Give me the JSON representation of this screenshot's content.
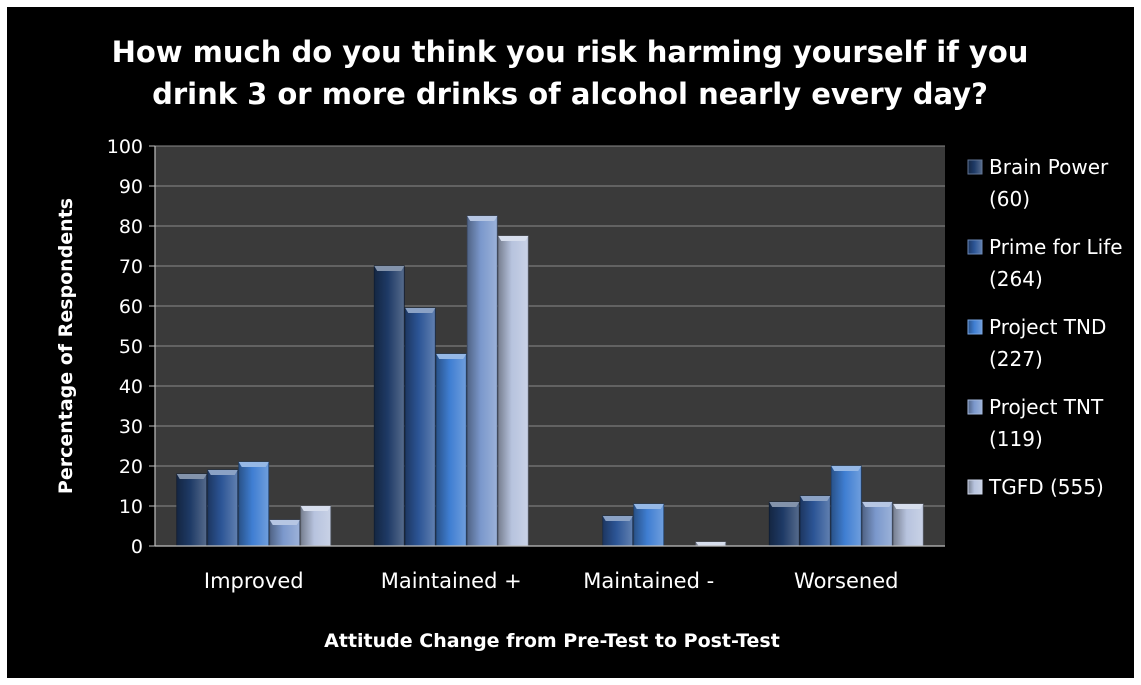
{
  "chart_data": {
    "type": "bar",
    "title_lines": [
      "How much do you think you risk harming yourself if you",
      "drink 3 or more drinks of alcohol nearly every day?"
    ],
    "xlabel": "Attitude Change from Pre-Test to Post-Test",
    "ylabel": "Percentage of Respondents",
    "ylim": [
      0,
      100
    ],
    "yticks": [
      0,
      10,
      20,
      30,
      40,
      50,
      60,
      70,
      80,
      90,
      100
    ],
    "grid": true,
    "legend_position": "right",
    "categories": [
      "Improved",
      "Maintained +",
      "Maintained -",
      "Worsened"
    ],
    "series": [
      {
        "name_lines": [
          "Brain Power",
          "(60)"
        ],
        "color": "#1e3a66",
        "values": [
          18,
          70,
          0,
          11
        ]
      },
      {
        "name_lines": [
          "Prime for Life",
          "(264)"
        ],
        "color": "#2c5596",
        "values": [
          19,
          59.5,
          7.5,
          12.5
        ]
      },
      {
        "name_lines": [
          "Project TND",
          "(227)"
        ],
        "color": "#3f7ed2",
        "values": [
          21,
          48,
          10.5,
          20
        ]
      },
      {
        "name_lines": [
          "Project TNT",
          "(119)"
        ],
        "color": "#7b98cc",
        "values": [
          6.5,
          82.5,
          0,
          11
        ]
      },
      {
        "name_lines": [
          "TGFD (555)"
        ],
        "color": "#b7c3de",
        "values": [
          10,
          77.5,
          1,
          10.5
        ]
      }
    ]
  }
}
